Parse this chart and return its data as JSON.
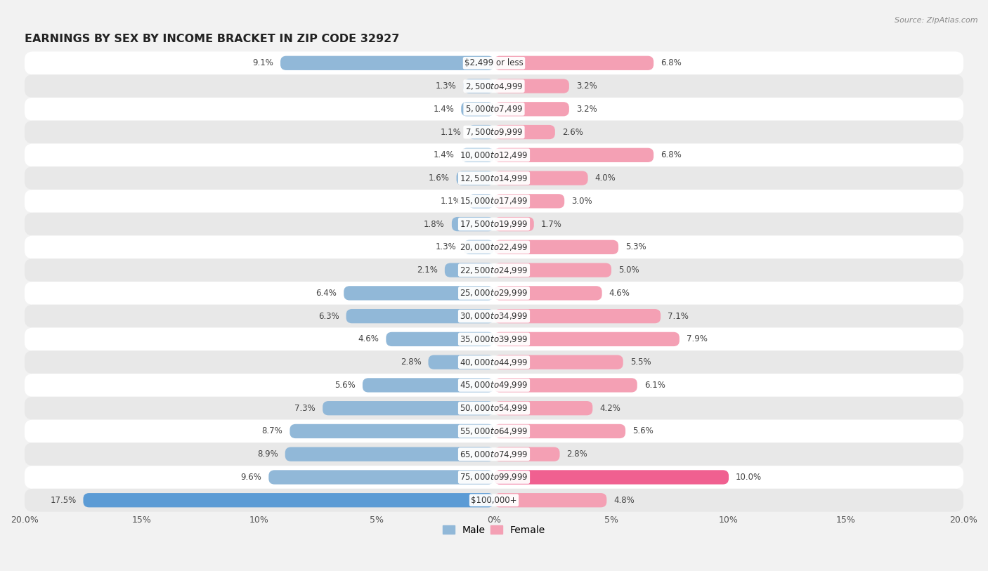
{
  "title": "EARNINGS BY SEX BY INCOME BRACKET IN ZIP CODE 32927",
  "source": "Source: ZipAtlas.com",
  "categories": [
    "$2,499 or less",
    "$2,500 to $4,999",
    "$5,000 to $7,499",
    "$7,500 to $9,999",
    "$10,000 to $12,499",
    "$12,500 to $14,999",
    "$15,000 to $17,499",
    "$17,500 to $19,999",
    "$20,000 to $22,499",
    "$22,500 to $24,999",
    "$25,000 to $29,999",
    "$30,000 to $34,999",
    "$35,000 to $39,999",
    "$40,000 to $44,999",
    "$45,000 to $49,999",
    "$50,000 to $54,999",
    "$55,000 to $64,999",
    "$65,000 to $74,999",
    "$75,000 to $99,999",
    "$100,000+"
  ],
  "male_values": [
    9.1,
    1.3,
    1.4,
    1.1,
    1.4,
    1.6,
    1.1,
    1.8,
    1.3,
    2.1,
    6.4,
    6.3,
    4.6,
    2.8,
    5.6,
    7.3,
    8.7,
    8.9,
    9.6,
    17.5
  ],
  "female_values": [
    6.8,
    3.2,
    3.2,
    2.6,
    6.8,
    4.0,
    3.0,
    1.7,
    5.3,
    5.0,
    4.6,
    7.1,
    7.9,
    5.5,
    6.1,
    4.2,
    5.6,
    2.8,
    10.0,
    4.8
  ],
  "male_color": "#91b8d8",
  "female_color": "#f4a0b4",
  "male_highlight_color": "#5b9bd5",
  "female_highlight_color": "#f06090",
  "highlight_male_idx": 19,
  "highlight_female_idx": 18,
  "xlim": 20.0,
  "bar_height": 0.62,
  "bg_color": "#f2f2f2",
  "row_colors": [
    "#ffffff",
    "#e8e8e8"
  ],
  "title_fontsize": 11.5,
  "label_fontsize": 8.5,
  "tick_fontsize": 9,
  "category_fontsize": 8.5
}
